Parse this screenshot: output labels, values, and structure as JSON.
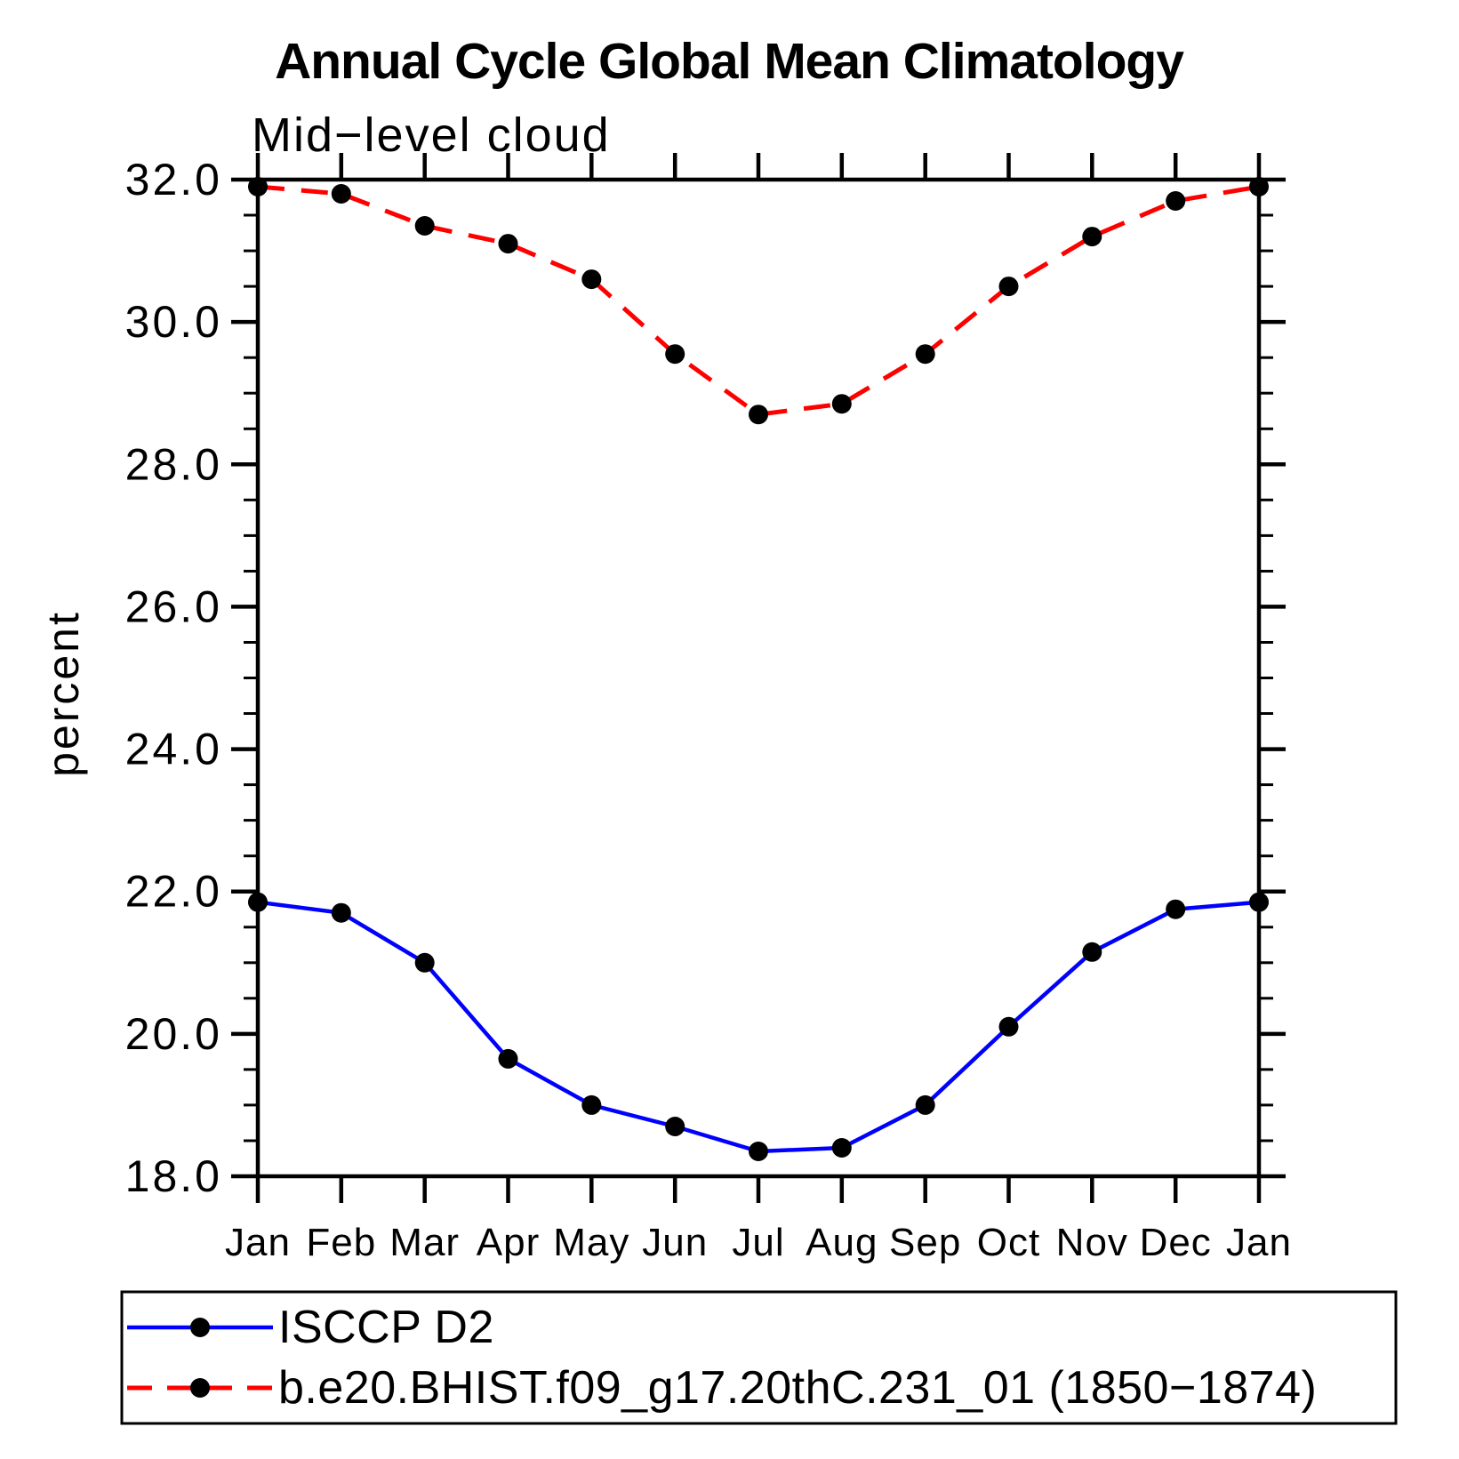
{
  "title": "Annual Cycle Global Mean Climatology",
  "subtitle": "Mid−level cloud",
  "y_axis": {
    "label": "percent",
    "tick_labels": [
      "18.0",
      "20.0",
      "22.0",
      "24.0",
      "26.0",
      "28.0",
      "30.0",
      "32.0"
    ],
    "min": 18.0,
    "max": 32.0,
    "major_step": 2.0,
    "minor_step": 0.5
  },
  "x_axis": {
    "tick_labels": [
      "Jan",
      "Feb",
      "Mar",
      "Apr",
      "May",
      "Jun",
      "Jul",
      "Aug",
      "Sep",
      "Oct",
      "Nov",
      "Dec",
      "Jan"
    ]
  },
  "legend": {
    "entries": [
      {
        "label": "ISCCP D2",
        "color": "#0000ff",
        "style": "solid",
        "marker": "black-dot"
      },
      {
        "label": "b.e20.BHIST.f09_g17.20thC.231_01 (1850−1874)",
        "color": "#ff0000",
        "style": "dashed",
        "marker": "black-dot"
      }
    ]
  },
  "colors": {
    "obs_line": "#0000ff",
    "model_line": "#ff0000",
    "marker": "#000000",
    "axis": "#000000",
    "background": "#ffffff"
  },
  "chart_data": {
    "type": "line",
    "title": "Annual Cycle Global Mean Climatology",
    "subtitle": "Mid−level cloud",
    "ylabel": "percent",
    "xlabel": "",
    "categories": [
      "Jan",
      "Feb",
      "Mar",
      "Apr",
      "May",
      "Jun",
      "Jul",
      "Aug",
      "Sep",
      "Oct",
      "Nov",
      "Dec",
      "Jan"
    ],
    "series": [
      {
        "name": "ISCCP D2",
        "color": "#0000ff",
        "line_style": "solid",
        "marker": "circle",
        "values": [
          21.85,
          21.7,
          21.0,
          19.65,
          19.0,
          18.7,
          18.35,
          18.4,
          19.0,
          20.1,
          21.15,
          21.75,
          21.85
        ]
      },
      {
        "name": "b.e20.BHIST.f09_g17.20thC.231_01 (1850−1874)",
        "color": "#ff0000",
        "line_style": "dashed",
        "marker": "circle",
        "values": [
          31.9,
          31.8,
          31.35,
          31.1,
          30.6,
          29.55,
          28.7,
          28.85,
          29.55,
          30.5,
          31.2,
          31.7,
          31.9
        ]
      }
    ],
    "ylim": [
      18.0,
      32.0
    ],
    "y_major_step": 2.0,
    "y_minor_step": 0.5,
    "grid": false,
    "legend_position": "bottom"
  }
}
